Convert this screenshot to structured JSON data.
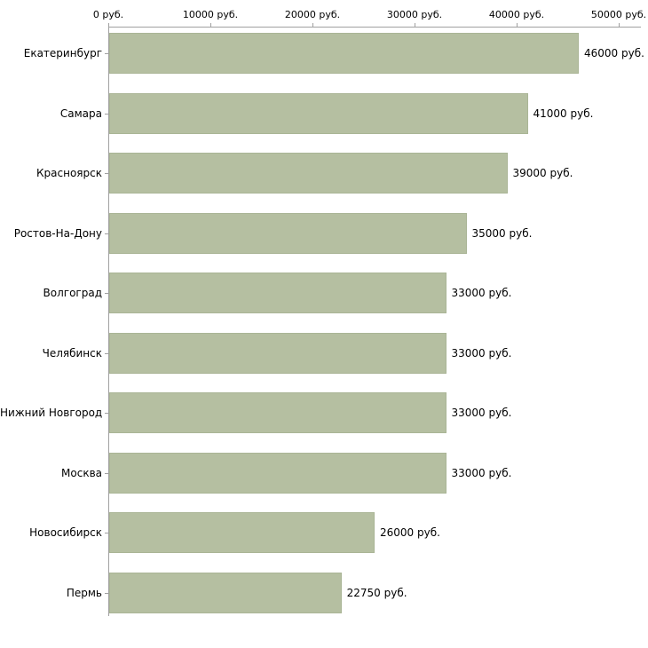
{
  "chart_data": {
    "type": "bar",
    "orientation": "horizontal",
    "title": "",
    "xlabel": "",
    "ylabel": "",
    "categories": [
      "Екатеринбург",
      "Самара",
      "Красноярск",
      "Ростов-На-Дону",
      "Волгоград",
      "Челябинск",
      "Нижний Новгород",
      "Москва",
      "Новосибирск",
      "Пермь"
    ],
    "values": [
      46000,
      41000,
      39000,
      35000,
      33000,
      33000,
      33000,
      33000,
      26000,
      22750
    ],
    "value_labels": [
      "46000 руб.",
      "41000 руб.",
      "39000 руб.",
      "35000 руб.",
      "33000 руб.",
      "33000 руб.",
      "33000 руб.",
      "33000 руб.",
      "26000 руб.",
      "22750 руб."
    ],
    "x_ticks": [
      0,
      10000,
      20000,
      30000,
      40000,
      50000
    ],
    "x_tick_labels": [
      "0 руб.",
      "10000 руб.",
      "20000 руб.",
      "30000 руб.",
      "40000 руб.",
      "50000 руб."
    ],
    "xlim": [
      0,
      50000
    ],
    "grid": false,
    "legend": false,
    "axis_position": "top-left",
    "bar_color": "#b5bfa1",
    "bar_border_color": "#aab596",
    "axis_color": "#a0a0a0",
    "text_color": "#000000",
    "background_color": "#ffffff"
  }
}
